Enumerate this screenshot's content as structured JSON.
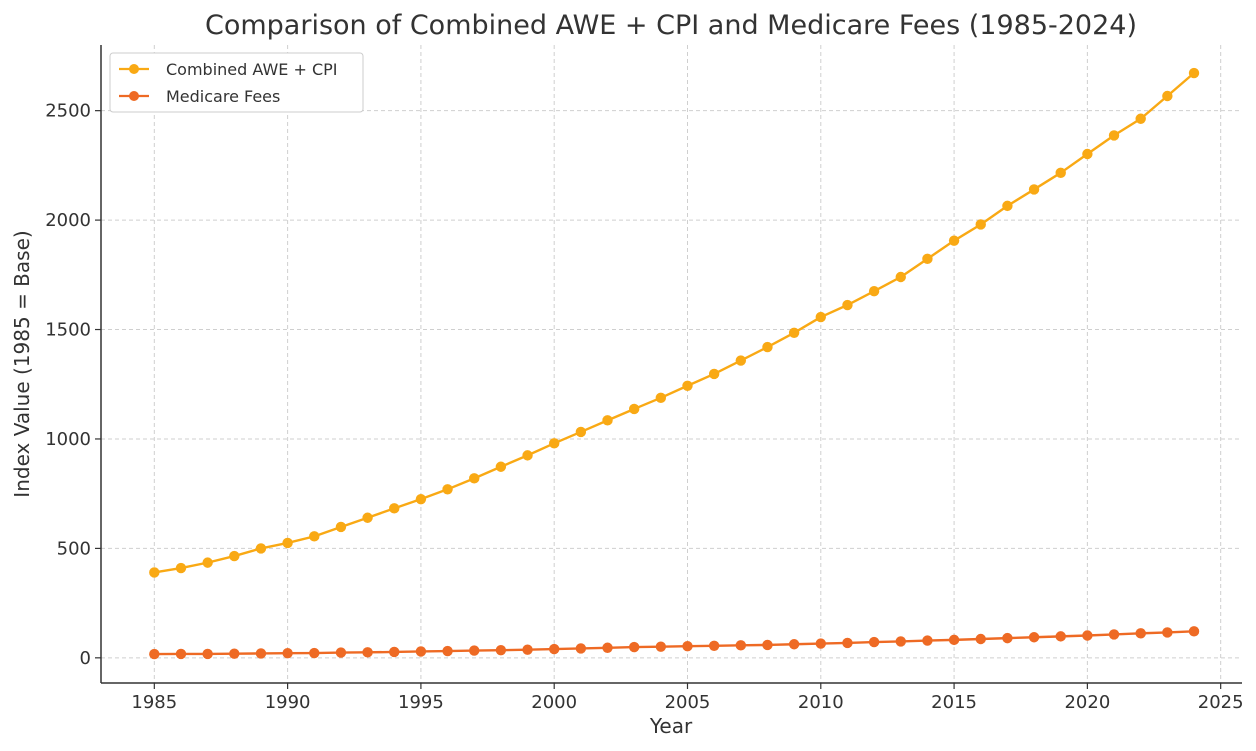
{
  "chart_data": {
    "type": "line",
    "title": "Comparison of Combined AWE + CPI and Medicare Fees (1985-2024)",
    "xlabel": "Year",
    "ylabel": "Index Value (1985 = Base)",
    "xlim": [
      1983,
      2025.8
    ],
    "ylim": [
      -115,
      2800
    ],
    "xticks": [
      1985,
      1990,
      1995,
      2000,
      2005,
      2010,
      2015,
      2020,
      2025
    ],
    "yticks": [
      0,
      500,
      1000,
      1500,
      2000,
      2500
    ],
    "grid": true,
    "legend_position": "top-left",
    "x": [
      1985,
      1986,
      1987,
      1988,
      1989,
      1990,
      1991,
      1992,
      1993,
      1994,
      1995,
      1996,
      1997,
      1998,
      1999,
      2000,
      2001,
      2002,
      2003,
      2004,
      2005,
      2006,
      2007,
      2008,
      2009,
      2010,
      2011,
      2012,
      2013,
      2014,
      2015,
      2016,
      2017,
      2018,
      2019,
      2020,
      2021,
      2022,
      2023,
      2024
    ],
    "series": [
      {
        "name": "Combined AWE + CPI",
        "color": "#f9a914",
        "values": [
          390,
          410,
          435,
          465,
          500,
          525,
          555,
          598,
          640,
          683,
          725,
          770,
          820,
          873,
          925,
          980,
          1032,
          1085,
          1137,
          1188,
          1243,
          1297,
          1358,
          1420,
          1485,
          1557,
          1612,
          1675,
          1740,
          1823,
          1906,
          1980,
          2065,
          2140,
          2216,
          2302,
          2387,
          2463,
          2567,
          2672
        ]
      },
      {
        "name": "Medicare Fees",
        "color": "#ee6a24",
        "values": [
          17,
          18,
          18,
          19,
          20,
          21,
          22,
          24,
          25,
          27,
          29,
          31,
          33,
          35,
          37,
          40,
          43,
          46,
          49,
          51,
          53,
          55,
          57,
          59,
          62,
          65,
          68,
          72,
          75,
          79,
          82,
          86,
          90,
          94,
          98,
          102,
          107,
          112,
          116,
          121
        ]
      }
    ]
  }
}
